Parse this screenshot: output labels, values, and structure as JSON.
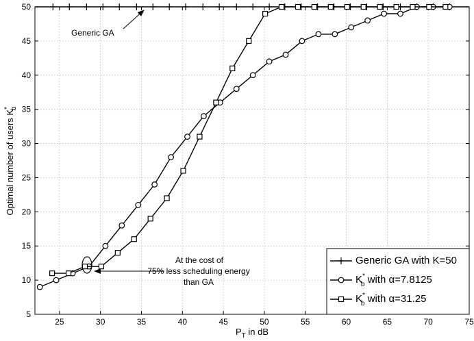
{
  "chart_data": {
    "type": "line",
    "xlabel": "P",
    "xlabel_sub": "T",
    "xlabel_suffix": " in dB",
    "ylabel": "Optimal number of users K",
    "ylabel_sup": "*",
    "ylabel_sub": "b",
    "xlim": [
      22,
      75
    ],
    "ylim": [
      5,
      50
    ],
    "xticks": [
      25,
      30,
      35,
      40,
      45,
      50,
      55,
      60,
      65,
      70,
      75
    ],
    "yticks": [
      5,
      10,
      15,
      20,
      25,
      30,
      35,
      40,
      45,
      50
    ],
    "grid": true,
    "legend_position": "bottom-right",
    "series": [
      {
        "name": "Generic GA with K=50",
        "marker": "plus",
        "x": [
          22,
          24.2,
          26.2,
          28.3,
          30.3,
          32.3,
          34.4,
          36.4,
          38.4,
          40.4,
          42.5,
          44.5,
          46.6,
          48.6,
          50.6,
          52.5,
          54.5,
          56.5,
          58.5,
          60.5,
          62.5,
          64.5,
          66.6,
          68.6,
          70.6,
          72.6,
          75
        ],
        "y": [
          50,
          50,
          50,
          50,
          50,
          50,
          50,
          50,
          50,
          50,
          50,
          50,
          50,
          50,
          50,
          50,
          50,
          50,
          50,
          50,
          50,
          50,
          50,
          50,
          50,
          50,
          50
        ]
      },
      {
        "name": "K_b^* with α=7.8125",
        "marker": "circle",
        "x": [
          22.6,
          24.6,
          26.6,
          28.6,
          30.6,
          32.6,
          34.6,
          36.6,
          38.6,
          40.6,
          42.6,
          44.6,
          46.6,
          48.6,
          50.6,
          52.6,
          54.6,
          56.6,
          58.6,
          60.6,
          62.6,
          64.6,
          66.6,
          68.6,
          70.6,
          72.6
        ],
        "y": [
          9,
          10,
          11,
          12,
          15,
          18,
          21,
          24,
          28,
          31,
          34,
          36,
          38,
          40,
          42,
          43,
          45,
          46,
          46,
          47,
          48,
          49,
          49,
          50,
          50,
          50
        ]
      },
      {
        "name": "K_b^* with α=31.25",
        "marker": "square",
        "x": [
          24.1,
          26.1,
          28.1,
          30.1,
          32.1,
          34.1,
          36.1,
          38.1,
          40.1,
          42.1,
          44.1,
          46.1,
          48.1,
          50.1,
          52.1,
          54.1,
          56.1,
          58.1,
          60.1,
          62.1,
          64.1,
          66.1,
          68.1,
          70.1,
          72.1
        ],
        "y": [
          11,
          11,
          12,
          12,
          14,
          16,
          19,
          22,
          26,
          31,
          36,
          41,
          45,
          49,
          50,
          50,
          50,
          50,
          50,
          50,
          50,
          50,
          50,
          50,
          50
        ]
      }
    ],
    "legend": [
      {
        "label": "Generic GA with K=50",
        "marker": "plus"
      },
      {
        "label_main": "K",
        "label_sup": "*",
        "label_sub": "b",
        "label_rest": " with α=7.8125",
        "marker": "circle"
      },
      {
        "label_main": "K",
        "label_sup": "*",
        "label_sub": "b",
        "label_rest": " with α=31.25",
        "marker": "square"
      }
    ],
    "annotations": {
      "generic_ga": "Generic GA",
      "cost_line1": "At the cost of",
      "cost_line2": "75% less scheduling energy",
      "cost_line3": "than GA"
    }
  }
}
